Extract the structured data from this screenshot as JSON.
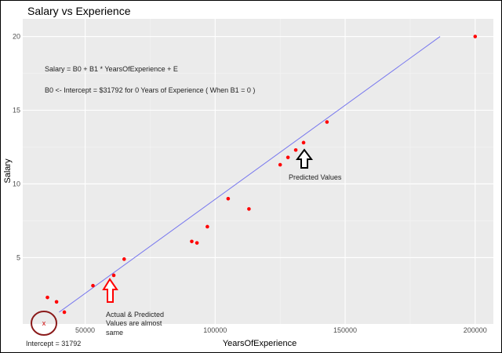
{
  "chart_data": {
    "type": "scatter",
    "title": "Salary vs Experience",
    "xlabel": "YearsOfExperience",
    "ylabel": "Salary",
    "xlim": [
      26000,
      207000
    ],
    "ylim": [
      0.5,
      21.2
    ],
    "xticks": [
      50000,
      100000,
      150000,
      200000
    ],
    "xtick_labels": [
      "50000",
      "100000",
      "150000",
      "200000"
    ],
    "yticks": [
      5,
      10,
      15,
      20
    ],
    "ytick_labels": [
      "5",
      "10",
      "15",
      "20"
    ],
    "grid": true,
    "background": "#ebebeb",
    "point_color": "#ff0000",
    "line_color": "#7777ee",
    "series": [
      {
        "type": "points",
        "x": [
          35500,
          39000,
          42000,
          53000,
          61000,
          65000,
          91000,
          93000,
          97000,
          105000,
          113000,
          125000,
          128000,
          131000,
          134000,
          143000,
          200000
        ],
        "y": [
          2.3,
          2.0,
          1.3,
          3.1,
          3.8,
          4.9,
          6.1,
          6.0,
          7.1,
          9.0,
          8.3,
          11.3,
          11.8,
          12.3,
          12.8,
          14.2,
          20.0
        ]
      },
      {
        "type": "fit_line",
        "x": [
          40000,
          186500
        ],
        "y": [
          1.3,
          20.0
        ]
      }
    ],
    "annotations": {
      "formula": "Salary = B0 + B1 * YearsOfExperience + E",
      "intercept_note": "B0  <-  Intercept = $31792 for 0 Years of Experience ( When B1 = 0 )",
      "predicted_label": "Predicted Values",
      "actual_label_lines": [
        "Actual & Predicted",
        "Values are almost",
        "same"
      ],
      "intercept_label": "Intercept = 31792",
      "intercept_marker": "x"
    }
  }
}
